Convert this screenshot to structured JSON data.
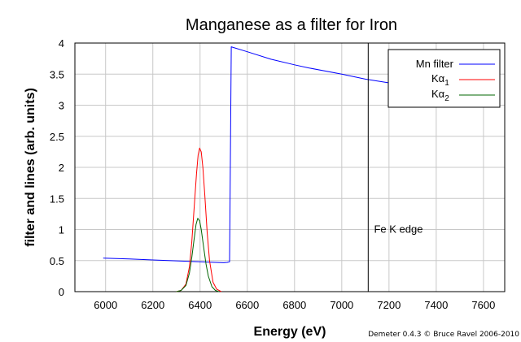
{
  "chart_data": {
    "type": "line",
    "title": "Manganese as a filter for Iron",
    "xlabel": "Energy (eV)",
    "ylabel": "filter and lines (arb. units)",
    "xlim": [
      5870,
      7690
    ],
    "ylim": [
      0,
      4
    ],
    "xticks": [
      6000,
      6200,
      6400,
      6600,
      6800,
      7000,
      7200,
      7400,
      7600
    ],
    "yticks": [
      0,
      0.5,
      1,
      1.5,
      2,
      2.5,
      3,
      3.5,
      4
    ],
    "ytick_labels": [
      "0",
      "0.5",
      "1",
      "1.5",
      "2",
      "2.5",
      "3",
      "3.5",
      "4"
    ],
    "grid": true,
    "legend_position": "top-right",
    "series": [
      {
        "name": "Mn filter",
        "color": "#0000ff",
        "x": [
          5990,
          6100,
          6200,
          6300,
          6400,
          6500,
          6515,
          6525,
          6532,
          6540,
          6600,
          6700,
          6800,
          6860,
          7000,
          7100,
          7200,
          7300,
          7400
        ],
        "y": [
          0.54,
          0.525,
          0.51,
          0.495,
          0.48,
          0.465,
          0.47,
          0.48,
          3.94,
          3.93,
          3.86,
          3.74,
          3.65,
          3.6,
          3.5,
          3.42,
          3.36,
          3.28,
          3.2
        ]
      },
      {
        "name": "Kα1",
        "color": "#ff0000",
        "x": [
          6300,
          6320,
          6340,
          6355,
          6365,
          6375,
          6385,
          6392,
          6398,
          6405,
          6412,
          6420,
          6430,
          6440,
          6455,
          6470,
          6490
        ],
        "y": [
          0.0,
          0.02,
          0.12,
          0.4,
          0.8,
          1.35,
          1.9,
          2.2,
          2.31,
          2.25,
          2.0,
          1.55,
          0.95,
          0.5,
          0.15,
          0.04,
          0.0
        ]
      },
      {
        "name": "Kα2",
        "color": "#006400",
        "x": [
          6300,
          6320,
          6340,
          6355,
          6365,
          6375,
          6383,
          6390,
          6398,
          6405,
          6415,
          6425,
          6435,
          6450,
          6465,
          6480
        ],
        "y": [
          0.0,
          0.02,
          0.1,
          0.3,
          0.55,
          0.85,
          1.08,
          1.18,
          1.14,
          1.0,
          0.72,
          0.45,
          0.25,
          0.08,
          0.02,
          0.0
        ]
      }
    ],
    "annotations": [
      {
        "text": "Fe K edge",
        "x": 7240,
        "y": 0.95
      }
    ],
    "vertical_lines": [
      {
        "x": 7112,
        "color": "#000000"
      }
    ]
  },
  "legend": {
    "mn_filter": "Mn filter",
    "ka1_main": "Kα",
    "ka1_sub": "1",
    "ka2_main": "Kα",
    "ka2_sub": "2"
  },
  "credit": "Demeter 0.4.3 © Bruce Ravel 2006-2010"
}
